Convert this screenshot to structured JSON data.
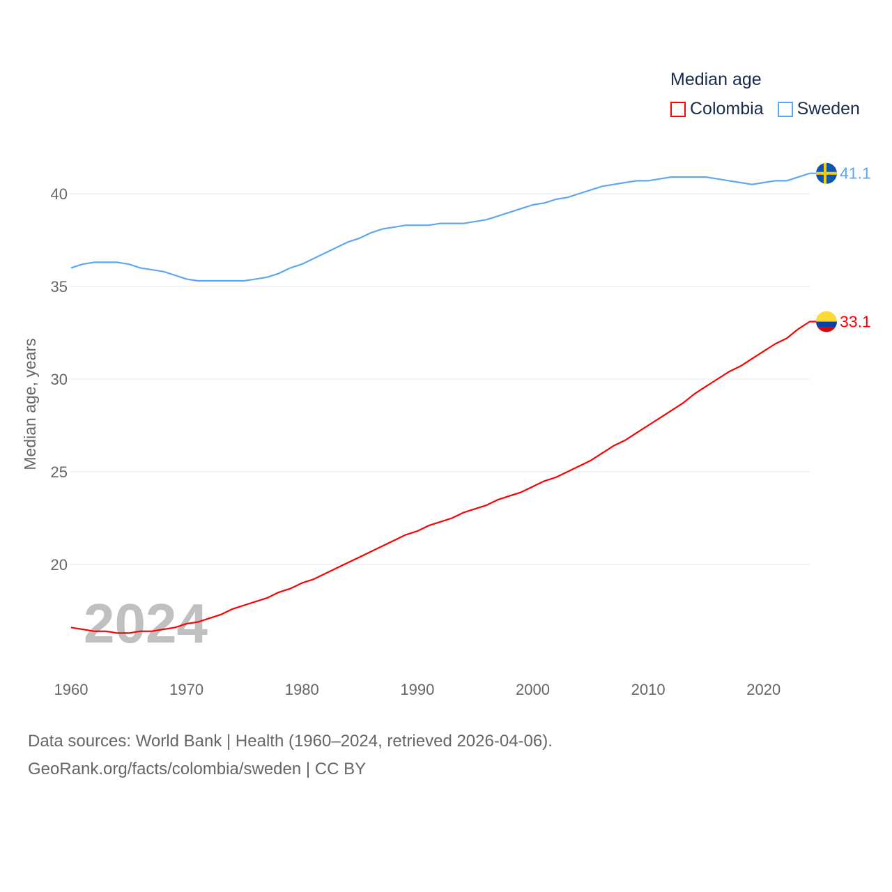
{
  "chart_data": {
    "type": "line",
    "title": "Median age",
    "xlabel": "",
    "ylabel": "Median age, years",
    "xlim": [
      1960,
      2024
    ],
    "ylim": [
      14.5,
      42.5
    ],
    "xticks": [
      1960,
      1970,
      1980,
      1990,
      2000,
      2010,
      2020
    ],
    "yticks": [
      20,
      25,
      30,
      35,
      40
    ],
    "grid": true,
    "legend_position": "top-right",
    "year_watermark": "2024",
    "x": [
      1960,
      1961,
      1962,
      1963,
      1964,
      1965,
      1966,
      1967,
      1968,
      1969,
      1970,
      1971,
      1972,
      1973,
      1974,
      1975,
      1976,
      1977,
      1978,
      1979,
      1980,
      1981,
      1982,
      1983,
      1984,
      1985,
      1986,
      1987,
      1988,
      1989,
      1990,
      1991,
      1992,
      1993,
      1994,
      1995,
      1996,
      1997,
      1998,
      1999,
      2000,
      2001,
      2002,
      2003,
      2004,
      2005,
      2006,
      2007,
      2008,
      2009,
      2010,
      2011,
      2012,
      2013,
      2014,
      2015,
      2016,
      2017,
      2018,
      2019,
      2020,
      2021,
      2022,
      2023,
      2024
    ],
    "series": [
      {
        "name": "Colombia",
        "color": "#ff0000",
        "end_label": "33.1",
        "flag": "colombia-flag",
        "values": [
          16.6,
          16.5,
          16.4,
          16.4,
          16.3,
          16.3,
          16.4,
          16.4,
          16.5,
          16.6,
          16.8,
          16.9,
          17.1,
          17.3,
          17.6,
          17.8,
          18.0,
          18.2,
          18.5,
          18.7,
          19.0,
          19.2,
          19.5,
          19.8,
          20.1,
          20.4,
          20.7,
          21.0,
          21.3,
          21.6,
          21.8,
          22.1,
          22.3,
          22.5,
          22.8,
          23.0,
          23.2,
          23.5,
          23.7,
          23.9,
          24.2,
          24.5,
          24.7,
          25.0,
          25.3,
          25.6,
          26.0,
          26.4,
          26.7,
          27.1,
          27.5,
          27.9,
          28.3,
          28.7,
          29.2,
          29.6,
          30.0,
          30.4,
          30.7,
          31.1,
          31.5,
          31.9,
          32.2,
          32.7,
          33.1
        ]
      },
      {
        "name": "Sweden",
        "color": "#5ba8f0",
        "end_label": "41.1",
        "flag": "sweden-flag",
        "values": [
          36.0,
          36.2,
          36.3,
          36.3,
          36.3,
          36.2,
          36.0,
          35.9,
          35.8,
          35.6,
          35.4,
          35.3,
          35.3,
          35.3,
          35.3,
          35.3,
          35.4,
          35.5,
          35.7,
          36.0,
          36.2,
          36.5,
          36.8,
          37.1,
          37.4,
          37.6,
          37.9,
          38.1,
          38.2,
          38.3,
          38.3,
          38.3,
          38.4,
          38.4,
          38.4,
          38.5,
          38.6,
          38.8,
          39.0,
          39.2,
          39.4,
          39.5,
          39.7,
          39.8,
          40.0,
          40.2,
          40.4,
          40.5,
          40.6,
          40.7,
          40.7,
          40.8,
          40.9,
          40.9,
          40.9,
          40.9,
          40.8,
          40.7,
          40.6,
          40.5,
          40.6,
          40.7,
          40.7,
          40.9,
          41.1
        ]
      }
    ]
  },
  "footer": {
    "line1": "Data sources: World Bank | Health (1960–2024, retrieved 2026-04-06).",
    "line2": "GeoRank.org/facts/colombia/sweden | CC BY"
  }
}
